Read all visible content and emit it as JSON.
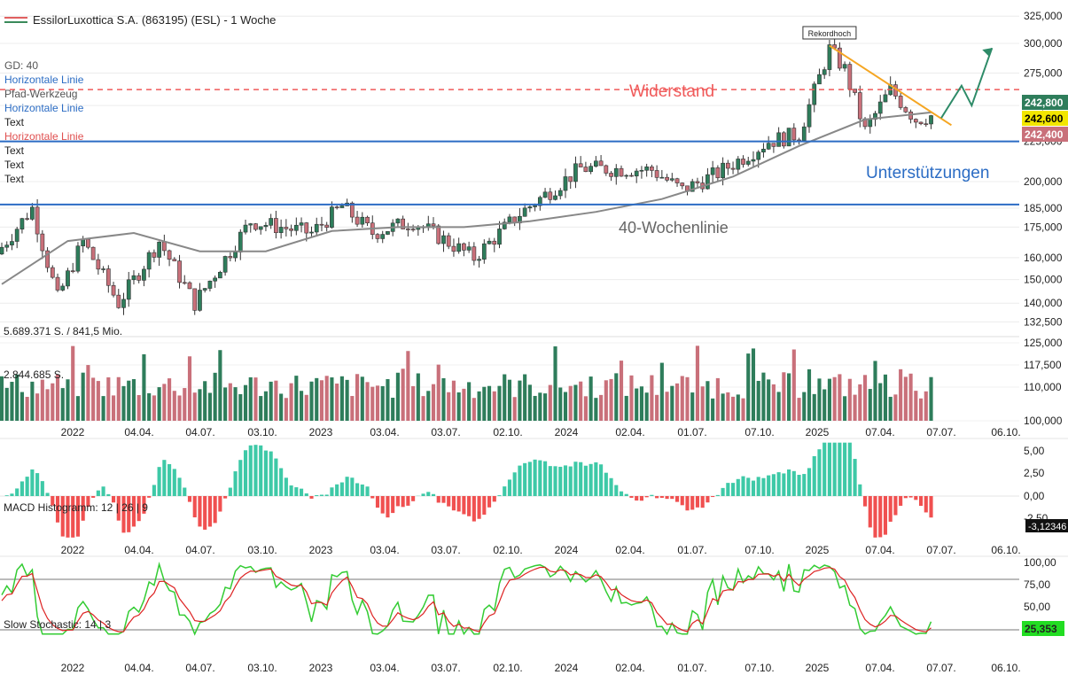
{
  "title": "EssilorLuxottica S.A. (863195) (ESL) - 1 Woche",
  "legend": [
    "GD: 40",
    "Horizontale Linie",
    "Pfad-Werkzeug",
    "Horizontale Linie",
    "Text",
    "Horizontale Linie",
    "Text",
    "Text",
    "Text"
  ],
  "legend_colors": [
    "#555555",
    "#2b6cc4",
    "#555555",
    "#2b6cc4",
    "#222222",
    "#e05050",
    "#222222",
    "#222222",
    "#222222"
  ],
  "annotations": {
    "record_high": "Rekordhoch",
    "resistance": "Widerstand",
    "support": "Unterstützungen",
    "ma_label": "40-Wochenlinie"
  },
  "colors": {
    "up": "#2e7d5b",
    "down": "#c9707a",
    "volume_up": "#2e7d5b",
    "volume_down": "#c9707a",
    "ma": "#888888",
    "support": "#2b6cc4",
    "resistance": "#f05a5a",
    "trend": "#f5a623",
    "arrow": "#2e8b68",
    "macd_pos": "#3ec9a7",
    "macd_neg": "#f05050",
    "stoch_k": "#33cc33",
    "stoch_d": "#dd2222"
  },
  "x_ticks": [
    "2022",
    "04.04.",
    "04.07.",
    "03.10.",
    "2023",
    "03.04.",
    "03.07.",
    "02.10.",
    "2024",
    "02.04.",
    "01.07.",
    "07.10.",
    "2025",
    "07.04.",
    "07.07.",
    "06.10."
  ],
  "price_ticks": [
    "325,000",
    "300,000",
    "275,000",
    "250,000",
    "225,000",
    "200,000",
    "185,000",
    "175,000",
    "160,000",
    "150,000",
    "140,000",
    "132,500",
    "125,000",
    "117,500",
    "110,000",
    "100,000"
  ],
  "price_badges": [
    {
      "text": "242,800",
      "bg": "#2e7d5b",
      "fg": "#ffffff"
    },
    {
      "text": "242,600",
      "bg": "#f2e600",
      "fg": "#000000"
    },
    {
      "text": "242,400",
      "bg": "#c9707a",
      "fg": "#ffffff"
    }
  ],
  "volume_label": "5.689.371 S. / 841,5 Mio.",
  "volume_mid_label": "2.844.685 S.",
  "macd": {
    "label": "MACD Histogramm: 12 | 26 | 9",
    "ticks": [
      "5,00",
      "2,50",
      "0,00",
      "-2,50"
    ],
    "last": "-3,12346"
  },
  "stochastic": {
    "label": "Slow Stochastic: 14 | 3",
    "ticks": [
      "100,00",
      "75,00",
      "50,00",
      "25,00"
    ],
    "last": "25,353"
  },
  "chart_data": {
    "type": "candlestick",
    "interval": "1 Woche",
    "ylim": [
      130000,
      330000
    ],
    "y_scale": "log",
    "anchors": [
      {
        "x": "2022-01-03",
        "close": 165000
      },
      {
        "x": "2022-02-14",
        "close": 185000
      },
      {
        "x": "2022-03-21",
        "close": 142000
      },
      {
        "x": "2022-04-25",
        "close": 168000
      },
      {
        "x": "2022-06-13",
        "close": 140000
      },
      {
        "x": "2022-08-08",
        "close": 168000
      },
      {
        "x": "2022-09-26",
        "close": 140000
      },
      {
        "x": "2022-12-12",
        "close": 178000
      },
      {
        "x": "2023-03-06",
        "close": 172000
      },
      {
        "x": "2023-04-17",
        "close": 186000
      },
      {
        "x": "2023-05-29",
        "close": 172000
      },
      {
        "x": "2023-07-24",
        "close": 178000
      },
      {
        "x": "2023-10-16",
        "close": 160000
      },
      {
        "x": "2023-12-18",
        "close": 182000
      },
      {
        "x": "2024-03-11",
        "close": 208000
      },
      {
        "x": "2024-06-17",
        "close": 207000
      },
      {
        "x": "2024-07-29",
        "close": 195000
      },
      {
        "x": "2024-09-16",
        "close": 205000
      },
      {
        "x": "2024-11-25",
        "close": 225000
      },
      {
        "x": "2025-01-06",
        "close": 230000
      },
      {
        "x": "2025-02-17",
        "close": 295000
      },
      {
        "x": "2025-03-10",
        "close": 278000
      },
      {
        "x": "2025-04-07",
        "close": 232000
      },
      {
        "x": "2025-05-12",
        "close": 262000
      },
      {
        "x": "2025-06-16",
        "close": 240000
      },
      {
        "x": "2025-07-07",
        "close": 242600
      }
    ],
    "ma40_anchors": [
      {
        "x": "2022-01-03",
        "value": 148000
      },
      {
        "x": "2022-04-04",
        "value": 168000
      },
      {
        "x": "2022-07-04",
        "value": 172000
      },
      {
        "x": "2022-10-03",
        "value": 163000
      },
      {
        "x": "2023-01-02",
        "value": 163000
      },
      {
        "x": "2023-04-03",
        "value": 173000
      },
      {
        "x": "2023-07-03",
        "value": 175000
      },
      {
        "x": "2023-10-02",
        "value": 175000
      },
      {
        "x": "2024-01-01",
        "value": 178000
      },
      {
        "x": "2024-04-01",
        "value": 183000
      },
      {
        "x": "2024-07-01",
        "value": 190000
      },
      {
        "x": "2024-10-07",
        "value": 203000
      },
      {
        "x": "2025-01-06",
        "value": 222000
      },
      {
        "x": "2025-04-07",
        "value": 240000
      },
      {
        "x": "2025-07-07",
        "value": 245000
      }
    ],
    "horizontal_lines": [
      {
        "label": "Widerstand",
        "value": 262000,
        "style": "dashed"
      },
      {
        "label": "Unterstützungen",
        "value": 225000,
        "style": "solid"
      },
      {
        "label": "Unterstützungen",
        "value": 187000,
        "style": "solid"
      }
    ],
    "last_prices": [
      242800,
      242600,
      242400
    ],
    "volume_max": "5.689.371 S.",
    "macd_last": -3.12346,
    "stochastic_last": 25.353
  }
}
